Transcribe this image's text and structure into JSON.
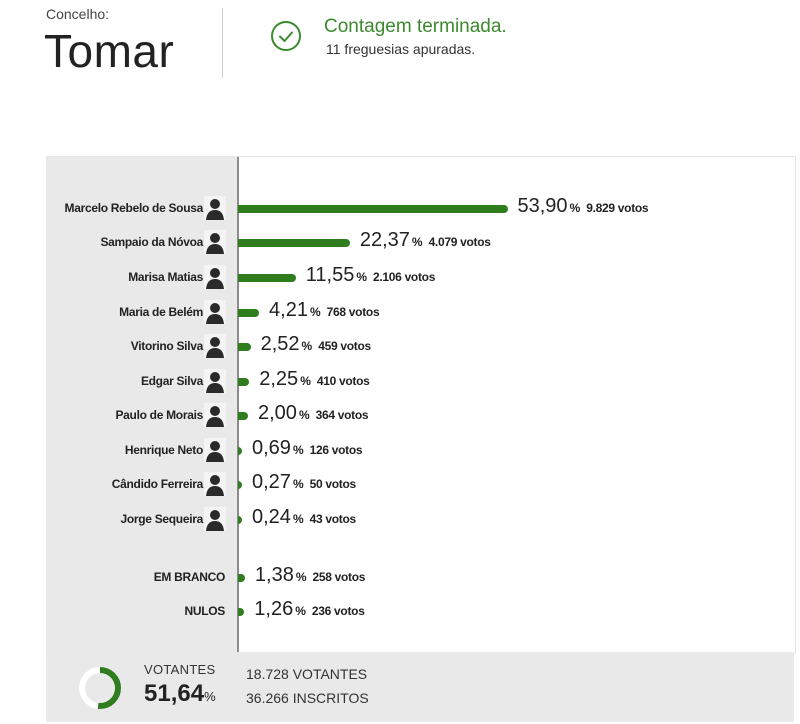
{
  "header": {
    "label": "Concelho:",
    "name": "Tomar",
    "status_title": "Contagem terminada.",
    "status_sub": "11 freguesias apuradas."
  },
  "colors": {
    "bar": "#2f7d1f",
    "accent": "#3c8a2e",
    "panel_gray": "#e9e9e9"
  },
  "chart_data": {
    "type": "bar",
    "orientation": "horizontal",
    "categories": [
      "Marcelo Rebelo de Sousa",
      "Sampaio da Nóvoa",
      "Marisa Matias",
      "Maria de Belém",
      "Vitorino Silva",
      "Edgar Silva",
      "Paulo de Morais",
      "Henrique Neto",
      "Cândido Ferreira",
      "Jorge Sequeira",
      "EM BRANCO",
      "NULOS"
    ],
    "values": [
      53.9,
      22.37,
      11.55,
      4.21,
      2.52,
      2.25,
      2.0,
      0.69,
      0.27,
      0.24,
      1.38,
      1.26
    ],
    "rows": [
      {
        "name": "Marcelo Rebelo de Sousa",
        "pct": 53.9,
        "pct_label": "53,90",
        "votes_label": "9.829 votos",
        "avatar": "portrait-icon",
        "special": false
      },
      {
        "name": "Sampaio da Nóvoa",
        "pct": 22.37,
        "pct_label": "22,37",
        "votes_label": "4.079 votos",
        "avatar": "portrait-icon",
        "special": false
      },
      {
        "name": "Marisa Matias",
        "pct": 11.55,
        "pct_label": "11,55",
        "votes_label": "2.106 votos",
        "avatar": "portrait-icon",
        "special": false
      },
      {
        "name": "Maria de Belém",
        "pct": 4.21,
        "pct_label": "4,21",
        "votes_label": "768 votos",
        "avatar": "portrait-icon",
        "special": false
      },
      {
        "name": "Vitorino Silva",
        "pct": 2.52,
        "pct_label": "2,52",
        "votes_label": "459 votos",
        "avatar": "portrait-icon",
        "special": false
      },
      {
        "name": "Edgar Silva",
        "pct": 2.25,
        "pct_label": "2,25",
        "votes_label": "410 votos",
        "avatar": "portrait-icon",
        "special": false
      },
      {
        "name": "Paulo de Morais",
        "pct": 2.0,
        "pct_label": "2,00",
        "votes_label": "364 votos",
        "avatar": "portrait-icon",
        "special": false
      },
      {
        "name": "Henrique Neto",
        "pct": 0.69,
        "pct_label": "0,69",
        "votes_label": "126 votos",
        "avatar": "portrait-icon",
        "special": false
      },
      {
        "name": "Cândido Ferreira",
        "pct": 0.27,
        "pct_label": "0,27",
        "votes_label": "50 votos",
        "avatar": "portrait-icon",
        "special": false
      },
      {
        "name": "Jorge Sequeira",
        "pct": 0.24,
        "pct_label": "0,24",
        "votes_label": "43 votos",
        "avatar": "portrait-icon",
        "special": false
      },
      {
        "name": "EM BRANCO",
        "pct": 1.38,
        "pct_label": "1,38",
        "votes_label": "258 votos",
        "avatar": "",
        "special": true
      },
      {
        "name": "NULOS",
        "pct": 1.26,
        "pct_label": "1,26",
        "votes_label": "236 votos",
        "avatar": "",
        "special": true
      }
    ],
    "pct_sign": "%",
    "xlim": [
      0,
      100
    ]
  },
  "footer": {
    "label": "VOTANTES",
    "turnout": 51.64,
    "turnout_label": "51,64",
    "pct_sign": "%",
    "votantes_num": "18.728",
    "votantes_word": "VOTANTES",
    "inscritos_num": "36.266",
    "inscritos_word": "INSCRITOS"
  }
}
